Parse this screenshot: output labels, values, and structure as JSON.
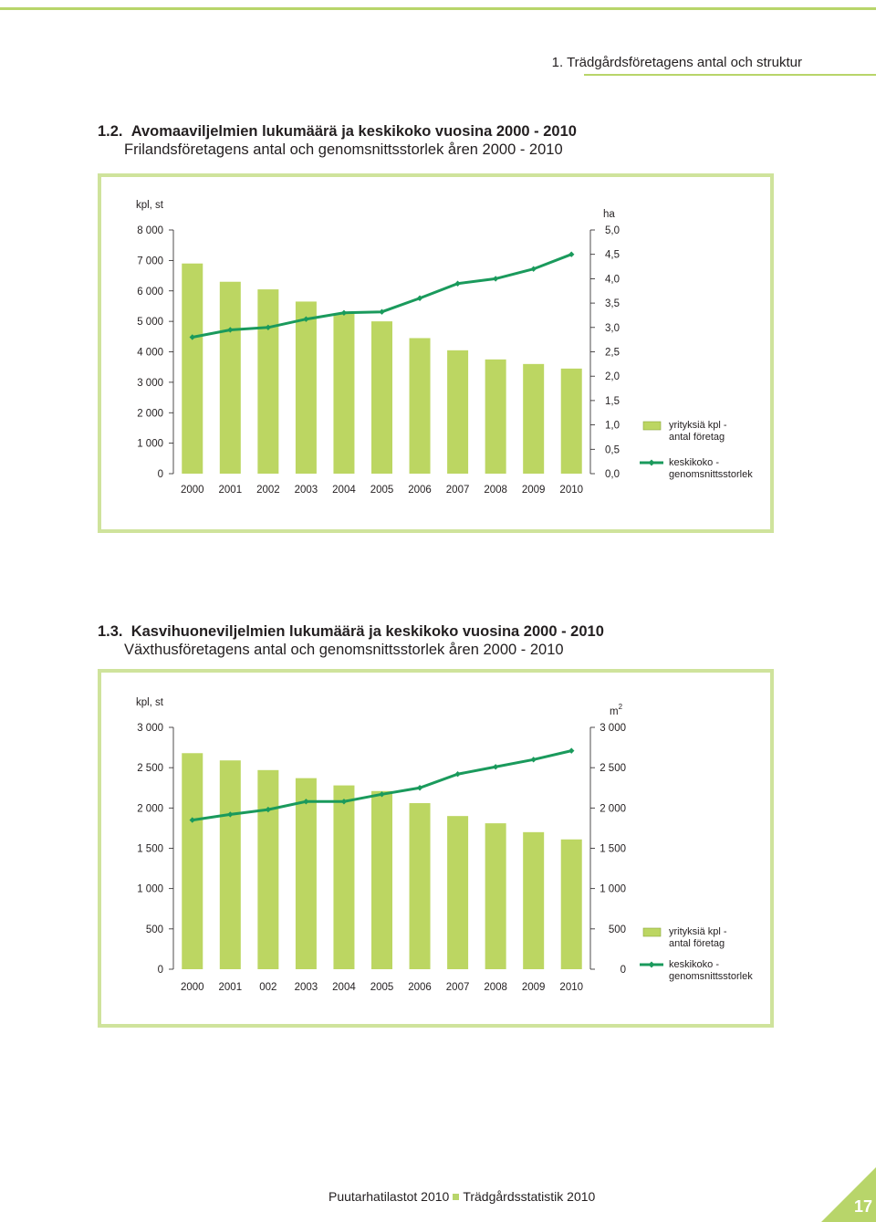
{
  "page": {
    "running_head": "1. Trädgårdsföretagens antal och struktur",
    "footer_left": "Puutarhatilastot 2010",
    "footer_right": "Trädgårdsstatistik 2010",
    "page_number": "17",
    "accent_color": "#b8d56a"
  },
  "sections": [
    {
      "number": "1.2.",
      "title_fi": "Avomaaviljelmien lukumäärä ja keskikoko vuosina 2000 - 2010",
      "title_sv": "Frilandsföretagens antal och genomsnittsstorlek åren 2000 - 2010"
    },
    {
      "number": "1.3.",
      "title_fi": "Kasvihuoneviljelmien lukumäärä ja keskikoko vuosina 2000 - 2010",
      "title_sv": "Växthusföretagens antal och genomsnittsstorlek åren 2000 - 2010"
    }
  ],
  "chart_data": [
    {
      "type": "bar",
      "bar_color": "#bcd662",
      "line_color": "#1a9a5c",
      "left_unit": "kpl, st",
      "right_unit": "ha",
      "right_unit_sup": "",
      "categories": [
        "2000",
        "2001",
        "2002",
        "2003",
        "2004",
        "2005",
        "2006",
        "2007",
        "2008",
        "2009",
        "2010"
      ],
      "left_ticks": [
        "0",
        "1 000",
        "2 000",
        "3 000",
        "4 000",
        "5 000",
        "6 000",
        "7 000",
        "8 000"
      ],
      "right_ticks": [
        "0,0",
        "0,5",
        "1,0",
        "1,5",
        "2,0",
        "2,5",
        "3,0",
        "3,5",
        "4,0",
        "4,5",
        "5,0"
      ],
      "ylim_left": [
        0,
        8000
      ],
      "ylim_right": [
        0,
        5
      ],
      "series": [
        {
          "name": "yrityksiä kpl - antal företag",
          "axis": "left",
          "values": [
            6900,
            6300,
            6050,
            5650,
            5250,
            5000,
            4450,
            4050,
            3750,
            3600,
            3450
          ]
        },
        {
          "name": "keskikoko - genomsnittsstorlek",
          "axis": "right",
          "values": [
            2.8,
            2.95,
            3.0,
            3.17,
            3.3,
            3.32,
            3.6,
            3.9,
            4.0,
            4.2,
            4.5
          ]
        }
      ],
      "legend": [
        {
          "label_1": "yrityksiä kpl -",
          "label_2": "antal företag"
        },
        {
          "label_1": "keskikoko -",
          "label_2": "genomsnittsstorlek"
        }
      ],
      "legend_position": "right"
    },
    {
      "type": "bar",
      "bar_color": "#bcd662",
      "line_color": "#1a9a5c",
      "left_unit": "kpl, st",
      "right_unit": "m",
      "right_unit_sup": "2",
      "categories": [
        "2000",
        "2001",
        "002",
        "2003",
        "2004",
        "2005",
        "2006",
        "2007",
        "2008",
        "2009",
        "2010"
      ],
      "left_ticks": [
        "0",
        "500",
        "1 000",
        "1 500",
        "2 000",
        "2 500",
        "3 000"
      ],
      "right_ticks": [
        "0",
        "500",
        "1 000",
        "1 500",
        "2 000",
        "2 500",
        "3 000"
      ],
      "ylim_left": [
        0,
        3000
      ],
      "ylim_right": [
        0,
        3000
      ],
      "series": [
        {
          "name": "yrityksiä kpl - antal företag",
          "axis": "left",
          "values": [
            2680,
            2590,
            2470,
            2370,
            2280,
            2210,
            2060,
            1900,
            1810,
            1700,
            1610
          ]
        },
        {
          "name": "keskikoko - genomsnittsstorlek",
          "axis": "right",
          "values": [
            1850,
            1920,
            1980,
            2080,
            2080,
            2170,
            2250,
            2420,
            2510,
            2600,
            2710
          ]
        }
      ],
      "legend": [
        {
          "label_1": "yrityksiä kpl -",
          "label_2": "antal företag"
        },
        {
          "label_1": "keskikoko -",
          "label_2": "genomsnittsstorlek"
        }
      ],
      "legend_position": "right"
    }
  ]
}
